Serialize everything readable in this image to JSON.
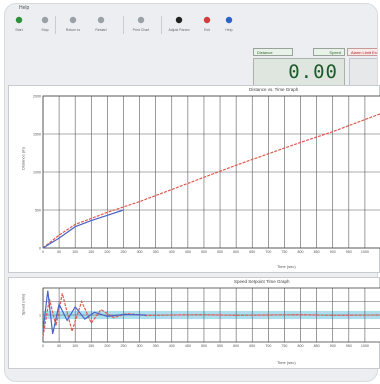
{
  "app": {
    "menu_label": "Help"
  },
  "toolbar": {
    "buttons": [
      {
        "label": "Start",
        "icon": "play-icon",
        "color": "#2f8f3a"
      },
      {
        "label": "Stop",
        "icon": "stop-icon",
        "color": "#9aa0a6"
      },
      {
        "label": "Return to",
        "icon": "return-icon",
        "color": "#9aa0a6"
      },
      {
        "label": "Restart",
        "icon": "restart-icon",
        "color": "#9aa0a6"
      },
      {
        "label": "Print Chart",
        "icon": "print-chart-icon",
        "color": "#9aa0a6"
      },
      {
        "label": "Adjust Param",
        "icon": "adjust-param-icon",
        "color": "#222222"
      },
      {
        "label": "Exit",
        "icon": "exit-icon",
        "color": "#d23c3c"
      },
      {
        "label": "Help",
        "icon": "help-icon",
        "color": "#2a62c9"
      }
    ]
  },
  "status": {
    "label_left": "Distance",
    "label_right": "Speed",
    "alert": "Alarm Limit Exceeded",
    "readout": "0.00"
  },
  "colors": {
    "series_a": "#e05a4e",
    "series_b": "#4a63c8",
    "band": "#9cd9ec",
    "grid": "#5a5a5a"
  },
  "chart_data": [
    {
      "type": "line",
      "title": "Distance vs. Time Graph",
      "xlabel": "Time (sec)",
      "ylabel": "Distance (m)",
      "xlim": [
        0,
        1050
      ],
      "ylim": [
        0,
        2000
      ],
      "xticks": [
        0,
        50,
        100,
        150,
        200,
        250,
        300,
        350,
        400,
        450,
        500,
        550,
        600,
        650,
        700,
        750,
        800,
        850,
        900,
        950,
        1000
      ],
      "yticks": [
        0,
        500,
        1000,
        1500,
        2000
      ],
      "grid": true,
      "series": [
        {
          "color": "#e05a4e",
          "x": [
            0,
            50,
            100,
            150,
            200,
            300,
            400,
            500,
            600,
            700,
            800,
            900,
            1000,
            1050
          ],
          "y": [
            0,
            170,
            310,
            390,
            470,
            610,
            770,
            930,
            1090,
            1240,
            1390,
            1530,
            1690,
            1770
          ]
        },
        {
          "color": "#4a63c8",
          "x": [
            0,
            50,
            100,
            150,
            200,
            250
          ],
          "y": [
            0,
            130,
            280,
            360,
            430,
            500
          ]
        }
      ]
    },
    {
      "type": "line",
      "title": "Speed Setpoint Time Graph",
      "xlabel": "Time (sec)",
      "ylabel": "Speed (m/s)",
      "xlim": [
        0,
        1050
      ],
      "ylim": [
        0,
        2
      ],
      "xticks": [
        0,
        50,
        100,
        150,
        200,
        250,
        300,
        350,
        400,
        450,
        500,
        550,
        600,
        650,
        700,
        750,
        800,
        850,
        900,
        950,
        1000
      ],
      "yticks": [
        1.0
      ],
      "band": [
        0.85,
        1.15
      ],
      "grid": true,
      "series": [
        {
          "color": "#e05a4e",
          "x": [
            0,
            20,
            40,
            60,
            90,
            120,
            150,
            180,
            220,
            260,
            320,
            400,
            500,
            600,
            700,
            800,
            900,
            1050
          ],
          "y": [
            0.2,
            1.6,
            0.6,
            1.8,
            0.4,
            1.5,
            0.7,
            1.2,
            0.9,
            1.05,
            0.98,
            1.0,
            1.01,
            0.99,
            1.0,
            1.01,
            0.99,
            1.0
          ]
        },
        {
          "color": "#4a63c8",
          "x": [
            0,
            15,
            30,
            50,
            75,
            100,
            130,
            160,
            200,
            250,
            320
          ],
          "y": [
            0.4,
            1.9,
            0.3,
            1.4,
            0.8,
            1.3,
            0.85,
            1.1,
            0.95,
            1.02,
            1.0
          ]
        }
      ]
    }
  ]
}
